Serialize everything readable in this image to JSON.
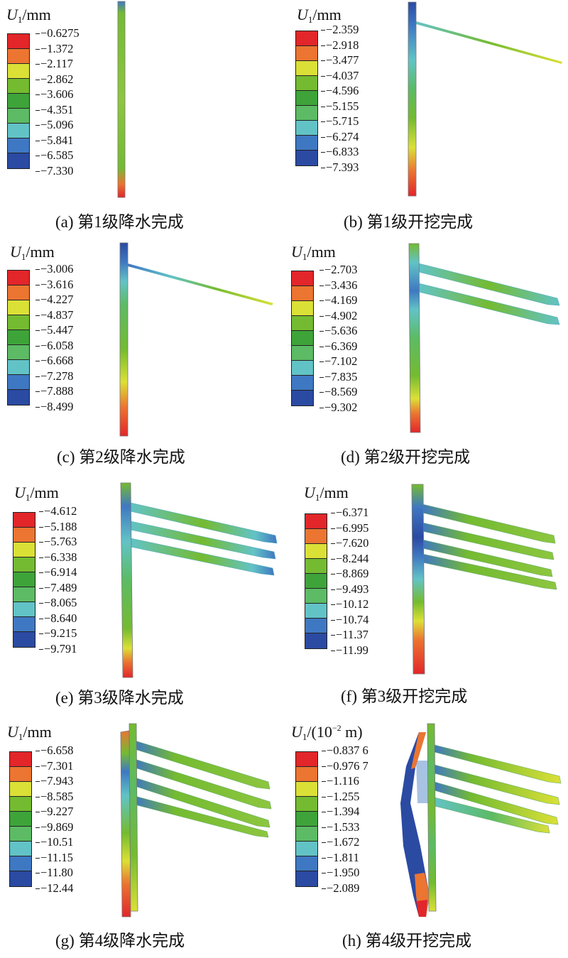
{
  "colorbar_colors": [
    "#e2262a",
    "#eb7531",
    "#dbe037",
    "#74bb31",
    "#3ea43a",
    "#5cbb64",
    "#62c3c6",
    "#3f78c2",
    "#2b4aa2"
  ],
  "panels": [
    {
      "unit_prefix": "U",
      "unit_sub": "1",
      "unit_suffix": "/mm",
      "unit_exp": "",
      "unit_tail": "",
      "ticks": [
        "−0.6275",
        "−1.372",
        "−2.117",
        "−2.862",
        "−3.606",
        "−4.351",
        "−5.096",
        "−5.841",
        "−6.585",
        "−7.330"
      ],
      "caption": "(a) 第1级降水完成"
    },
    {
      "unit_prefix": "U",
      "unit_sub": "1",
      "unit_suffix": "/mm",
      "unit_exp": "",
      "unit_tail": "",
      "ticks": [
        "−2.359",
        "−2.918",
        "−3.477",
        "−4.037",
        "−4.596",
        "−5.155",
        "−5.715",
        "−6.274",
        "−6.833",
        "−7.393"
      ],
      "caption": "(b) 第1级开挖完成"
    },
    {
      "unit_prefix": "U",
      "unit_sub": "1",
      "unit_suffix": "/mm",
      "unit_exp": "",
      "unit_tail": "",
      "ticks": [
        "−3.006",
        "−3.616",
        "−4.227",
        "−4.837",
        "−5.447",
        "−6.058",
        "−6.668",
        "−7.278",
        "−7.888",
        "−8.499"
      ],
      "caption": "(c) 第2级降水完成"
    },
    {
      "unit_prefix": "U",
      "unit_sub": "1",
      "unit_suffix": "/mm",
      "unit_exp": "",
      "unit_tail": "",
      "ticks": [
        "−2.703",
        "−3.436",
        "−4.169",
        "−4.902",
        "−5.636",
        "−6.369",
        "−7.102",
        "−7.835",
        "−8.569",
        "−9.302"
      ],
      "caption": "(d) 第2级开挖完成"
    },
    {
      "unit_prefix": "U",
      "unit_sub": "1",
      "unit_suffix": "/mm",
      "unit_exp": "",
      "unit_tail": "",
      "ticks": [
        "−4.612",
        "−5.188",
        "−5.763",
        "−6.338",
        "−6.914",
        "−7.489",
        "−8.065",
        "−8.640",
        "−9.215",
        "−9.791"
      ],
      "caption": "(e) 第3级降水完成"
    },
    {
      "unit_prefix": "U",
      "unit_sub": "1",
      "unit_suffix": "/mm",
      "unit_exp": "",
      "unit_tail": "",
      "ticks": [
        "−6.371",
        "−6.995",
        "−7.620",
        "−8.244",
        "−8.869",
        "−9.493",
        "−10.12",
        "−10.74",
        "−11.37",
        "−11.99"
      ],
      "caption": "(f) 第3级开挖完成"
    },
    {
      "unit_prefix": "U",
      "unit_sub": "1",
      "unit_suffix": "/mm",
      "unit_exp": "",
      "unit_tail": "",
      "ticks": [
        "−6.658",
        "−7.301",
        "−7.943",
        "−8.585",
        "−9.227",
        "−9.869",
        "−10.51",
        "−11.15",
        "−11.80",
        "−12.44"
      ],
      "caption": "(g) 第4级降水完成"
    },
    {
      "unit_prefix": "U",
      "unit_sub": "1",
      "unit_suffix": "/(10",
      "unit_exp": "−2",
      "unit_tail": " m)",
      "ticks": [
        "−0.837 6",
        "−0.976 7",
        "−1.116",
        "−1.255",
        "−1.394",
        "−1.533",
        "−1.672",
        "−1.811",
        "−1.950",
        "−2.089"
      ],
      "caption": "(h) 第4级开挖完成"
    }
  ]
}
